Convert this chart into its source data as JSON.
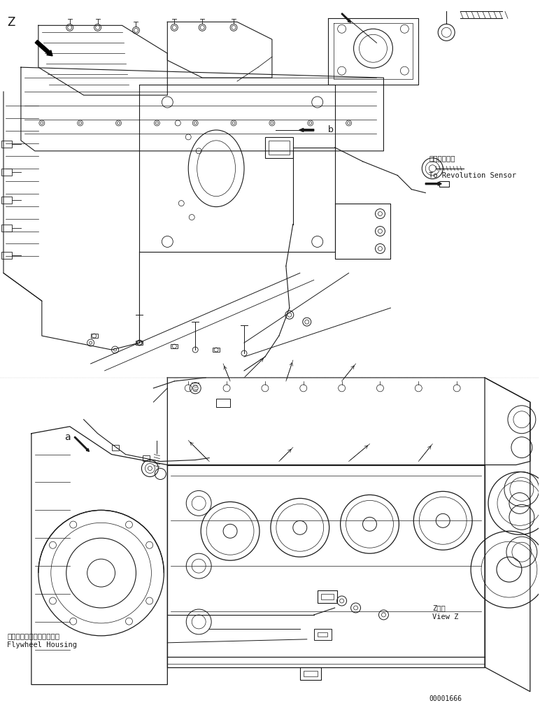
{
  "bg_color": "#ffffff",
  "line_color": "#1a1a1a",
  "fig_width": 7.72,
  "fig_height": 10.15,
  "dpi": 100,
  "label_z_top": "Z",
  "label_z_bottom": "Z　視\nView Z",
  "label_revolution_jp": "回転センサへ",
  "label_revolution_en": "To Revolution Sensor",
  "label_flywheel_jp": "フライホイールハウジング",
  "label_flywheel_en": "Flywheel Housing",
  "label_a": "a",
  "label_b": "b",
  "part_number": "00001666",
  "title_fontsize": 9,
  "annotation_fontsize": 7.5,
  "small_fontsize": 7
}
